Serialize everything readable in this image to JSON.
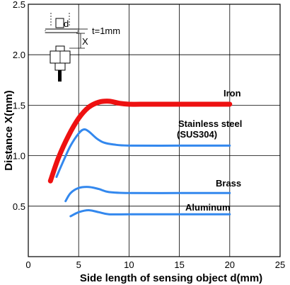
{
  "chart_data": {
    "type": "line",
    "xlabel": "Side length of sensing object d(mm)",
    "ylabel": "Distance X(mm)",
    "xlim": [
      0,
      25
    ],
    "ylim": [
      0,
      2.5
    ],
    "xticks": [
      0,
      5,
      10,
      15,
      20,
      25
    ],
    "yticks": [
      0.5,
      1.0,
      1.5,
      2.0,
      2.5
    ],
    "ytick_labels": [
      "0.5",
      "1.0",
      "1.5",
      "2.0",
      "2.5"
    ],
    "grid": true,
    "series": [
      {
        "name": "Iron",
        "color": "#ee1111",
        "x": [
          2.2,
          3,
          4,
          5,
          6,
          7,
          8,
          9,
          10,
          12,
          15,
          20
        ],
        "y": [
          0.75,
          0.98,
          1.2,
          1.37,
          1.48,
          1.53,
          1.54,
          1.52,
          1.51,
          1.51,
          1.51,
          1.51
        ]
      },
      {
        "name": "Stainless steel",
        "label_line2": "(SUS304)",
        "color": "#3388ee",
        "x": [
          2.8,
          3.5,
          4.2,
          5,
          5.5,
          6,
          6.8,
          7.5,
          8.5,
          10,
          15,
          20
        ],
        "y": [
          0.79,
          0.95,
          1.1,
          1.22,
          1.26,
          1.24,
          1.17,
          1.13,
          1.11,
          1.1,
          1.1,
          1.1
        ]
      },
      {
        "name": "Brass",
        "color": "#3388ee",
        "x": [
          3.7,
          4.2,
          5,
          6,
          7,
          8,
          10,
          15,
          20
        ],
        "y": [
          0.55,
          0.63,
          0.68,
          0.69,
          0.67,
          0.64,
          0.63,
          0.63,
          0.63
        ]
      },
      {
        "name": "Aluminum",
        "color": "#3388ee",
        "x": [
          4.2,
          5,
          6,
          7,
          8,
          10,
          15,
          20
        ],
        "y": [
          0.4,
          0.44,
          0.46,
          0.44,
          0.42,
          0.42,
          0.42,
          0.42
        ]
      }
    ],
    "inset": {
      "label_d": "d",
      "label_t": "t=1mm",
      "label_x": "X"
    }
  }
}
